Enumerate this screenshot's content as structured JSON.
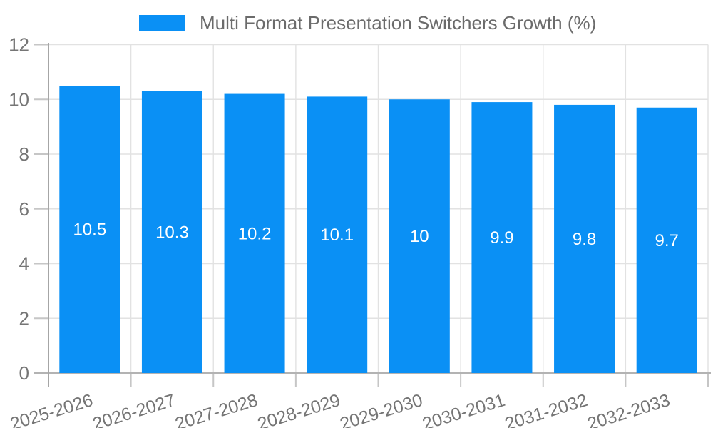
{
  "chart_data": {
    "type": "bar",
    "title": "Multi Format Presentation Switchers Growth (%)",
    "categories": [
      "2025-2026",
      "2026-2027",
      "2027-2028",
      "2028-2029",
      "2029-2030",
      "2030-2031",
      "2031-2032",
      "2032-2033"
    ],
    "values": [
      10.5,
      10.3,
      10.2,
      10.1,
      10,
      9.9,
      9.8,
      9.7
    ],
    "value_labels": [
      "10.5",
      "10.3",
      "10.2",
      "10.1",
      "10",
      "9.9",
      "9.8",
      "9.7"
    ],
    "xlabel": "",
    "ylabel": "",
    "ylim": [
      0,
      12
    ],
    "ytick_step": 2,
    "ytick_labels": [
      "0",
      "2",
      "4",
      "6",
      "8",
      "10",
      "12"
    ],
    "grid": true,
    "legend_position": "top-center",
    "x_label_rotation_deg": -17,
    "colors": {
      "bar": "#0a90f5",
      "value_label": "#ffffff",
      "axis_label": "#757575",
      "legend_text": "#6b6b6b",
      "gridline": "#e2e2e2",
      "axis_line": "#a6a6a6",
      "x_axis_line": "#b3b3b3",
      "tick": "#c6c6c6",
      "background": "#ffffff"
    }
  }
}
